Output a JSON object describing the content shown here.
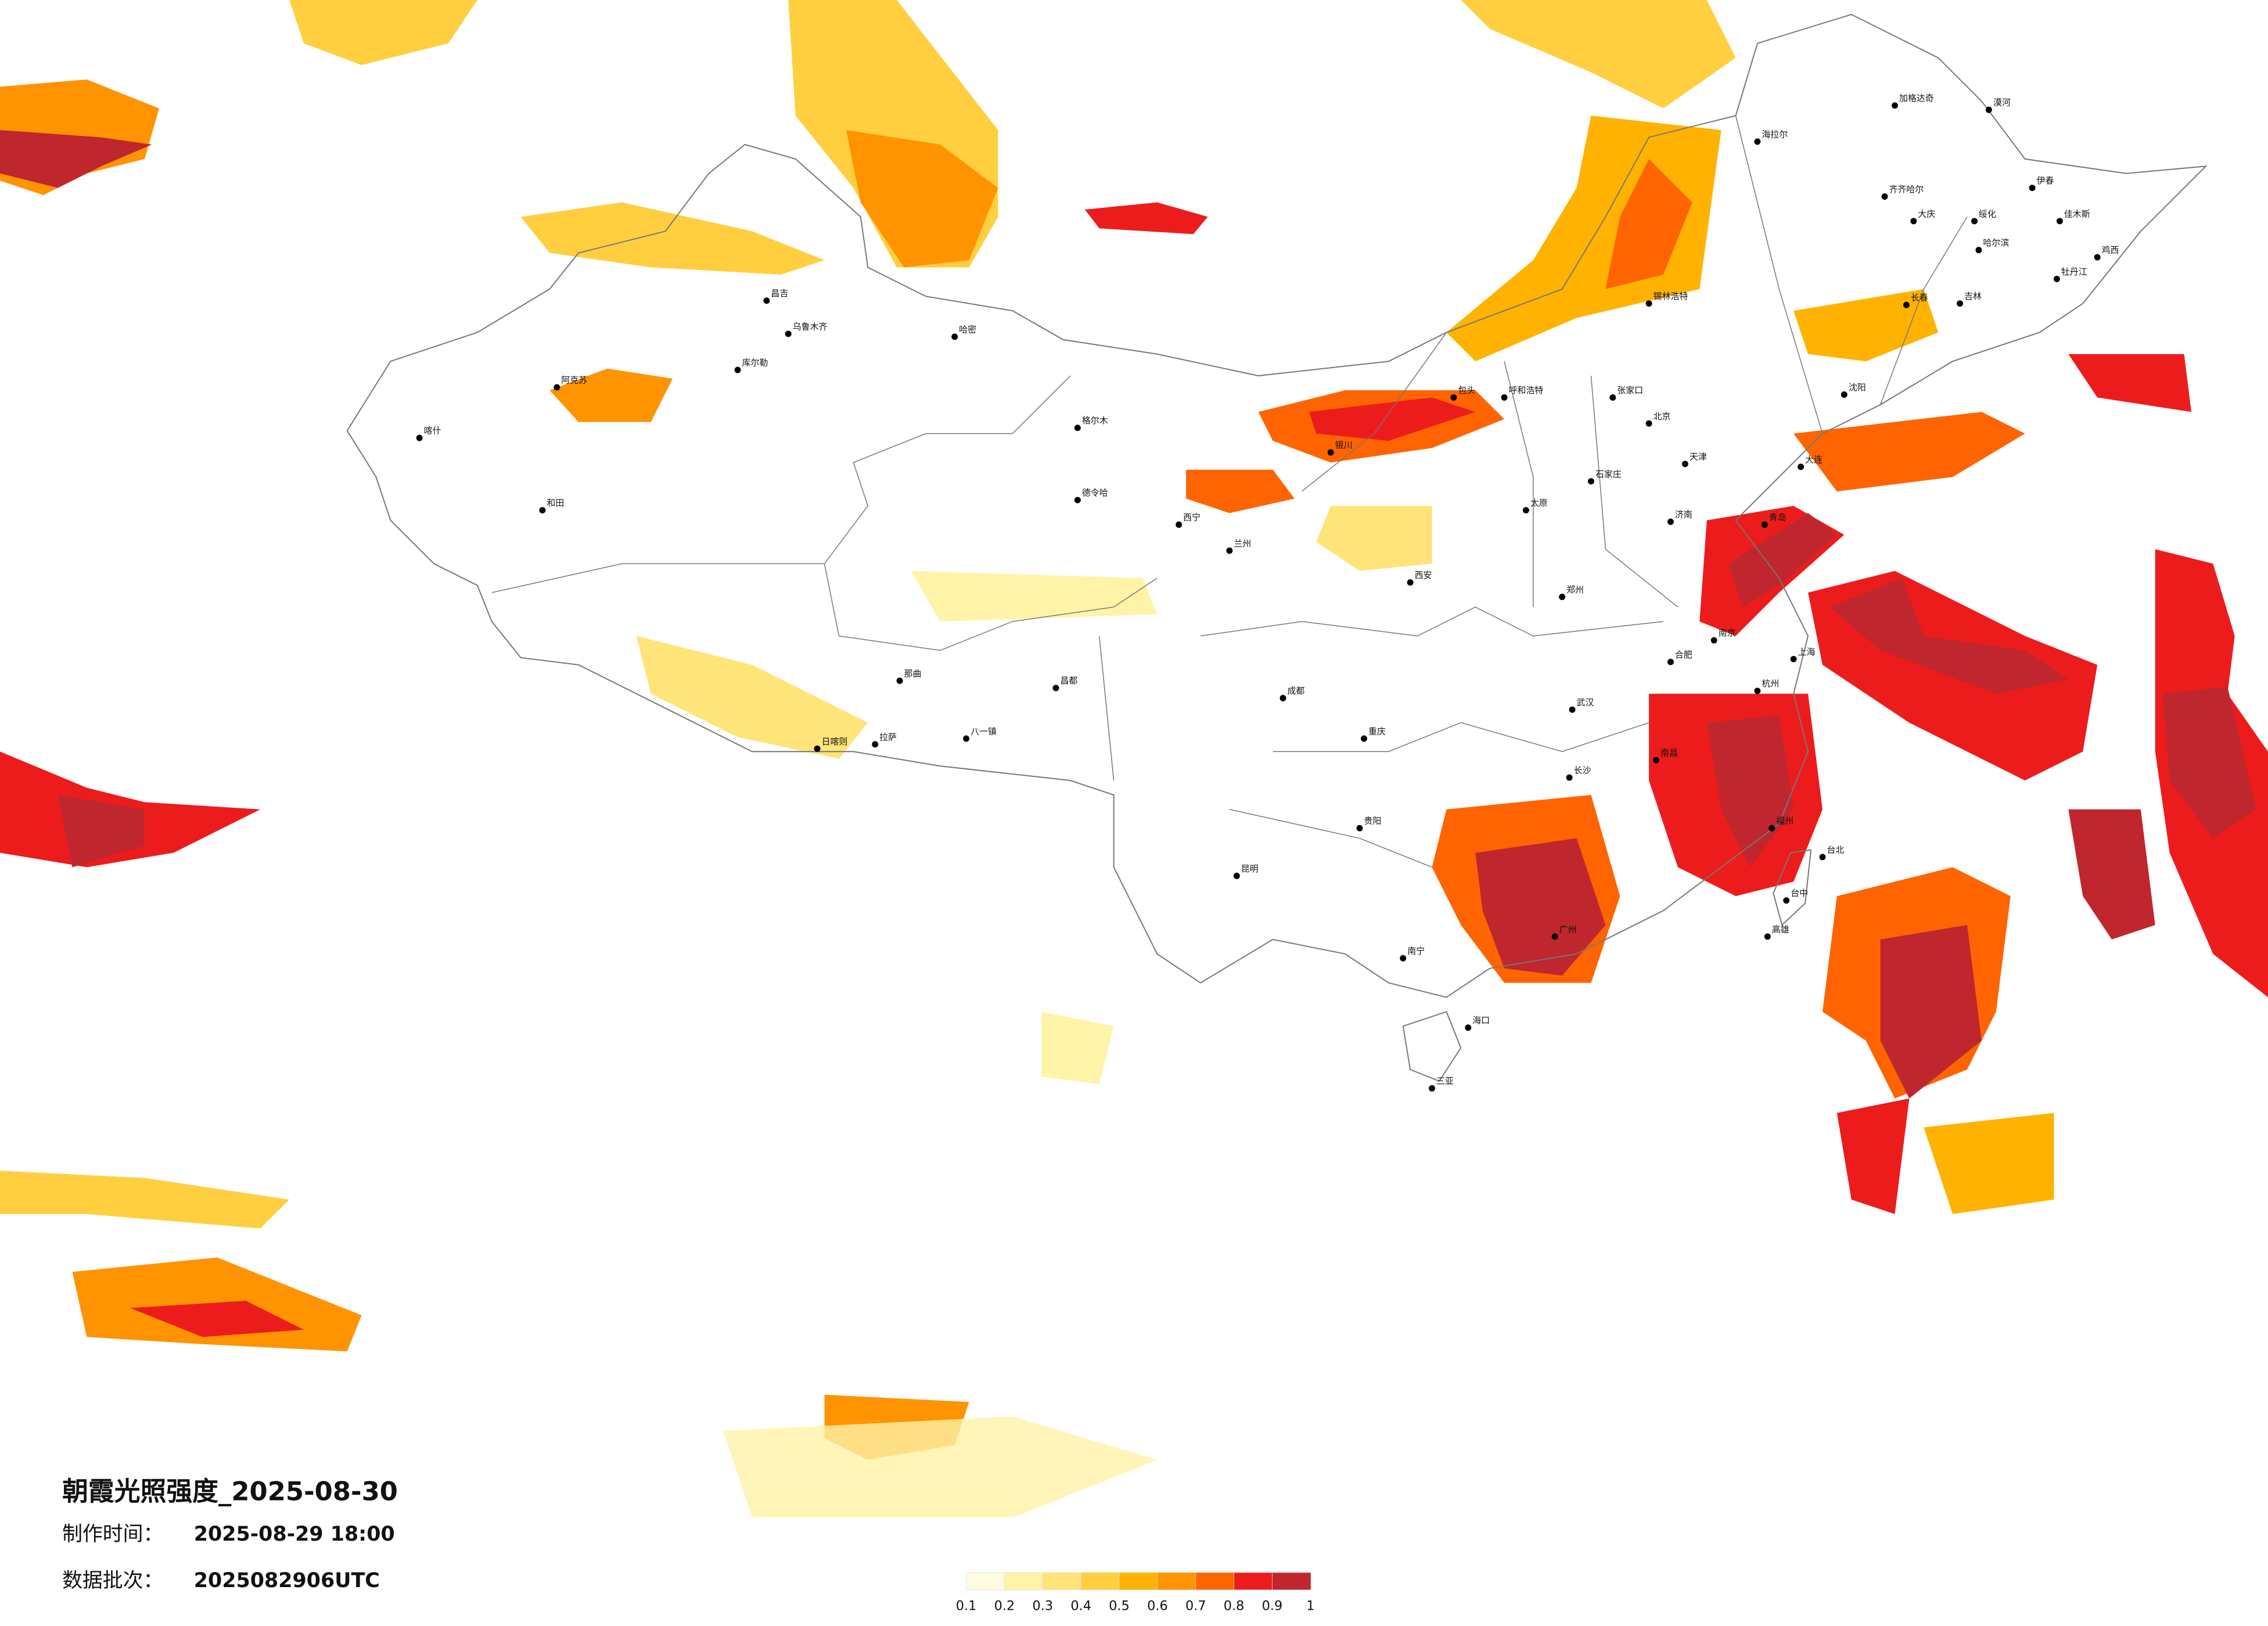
{
  "header": {
    "title": "朝霞光照强度_2025-08-30",
    "made_label": "制作时间：",
    "made_value": "2025-08-29 18:00",
    "batch_label": "数据批次：",
    "batch_value": "2025082906UTC"
  },
  "legend": {
    "colors": [
      "#fffbe0",
      "#fff3a8",
      "#ffe47a",
      "#ffcf40",
      "#ffb300",
      "#ff9300",
      "#ff6400",
      "#ec1c1c",
      "#c0262d"
    ],
    "ticks": [
      0.1,
      0.2,
      0.3,
      0.4,
      0.5,
      0.6,
      0.7,
      0.8,
      0.9,
      1
    ]
  },
  "cities": [
    "漠河",
    "加格达奇",
    "海拉尔",
    "齐齐哈尔",
    "大庆",
    "绥化",
    "哈尔滨",
    "伊春",
    "佳木斯",
    "鸡西",
    "牡丹江",
    "吉林",
    "长春",
    "锡林浩特",
    "呼和浩特",
    "包头",
    "张家口",
    "北京",
    "天津",
    "石家庄",
    "太原",
    "济南",
    "郑州",
    "西安",
    "兰州",
    "银川",
    "西宁",
    "格尔木",
    "德令哈",
    "乌鲁木齐",
    "昌吉",
    "哈密",
    "喀什",
    "和田",
    "阿克苏",
    "库尔勒",
    "拉萨",
    "日喀则",
    "那曲",
    "八一镇",
    "昌都",
    "成都",
    "重庆",
    "贵阳",
    "昆明",
    "南宁",
    "广州",
    "海口",
    "三亚",
    "武汉",
    "长沙",
    "南昌",
    "合肥",
    "南京",
    "上海",
    "杭州",
    "福州",
    "台北",
    "台中",
    "高雄",
    "沈阳",
    "大连",
    "青岛"
  ]
}
